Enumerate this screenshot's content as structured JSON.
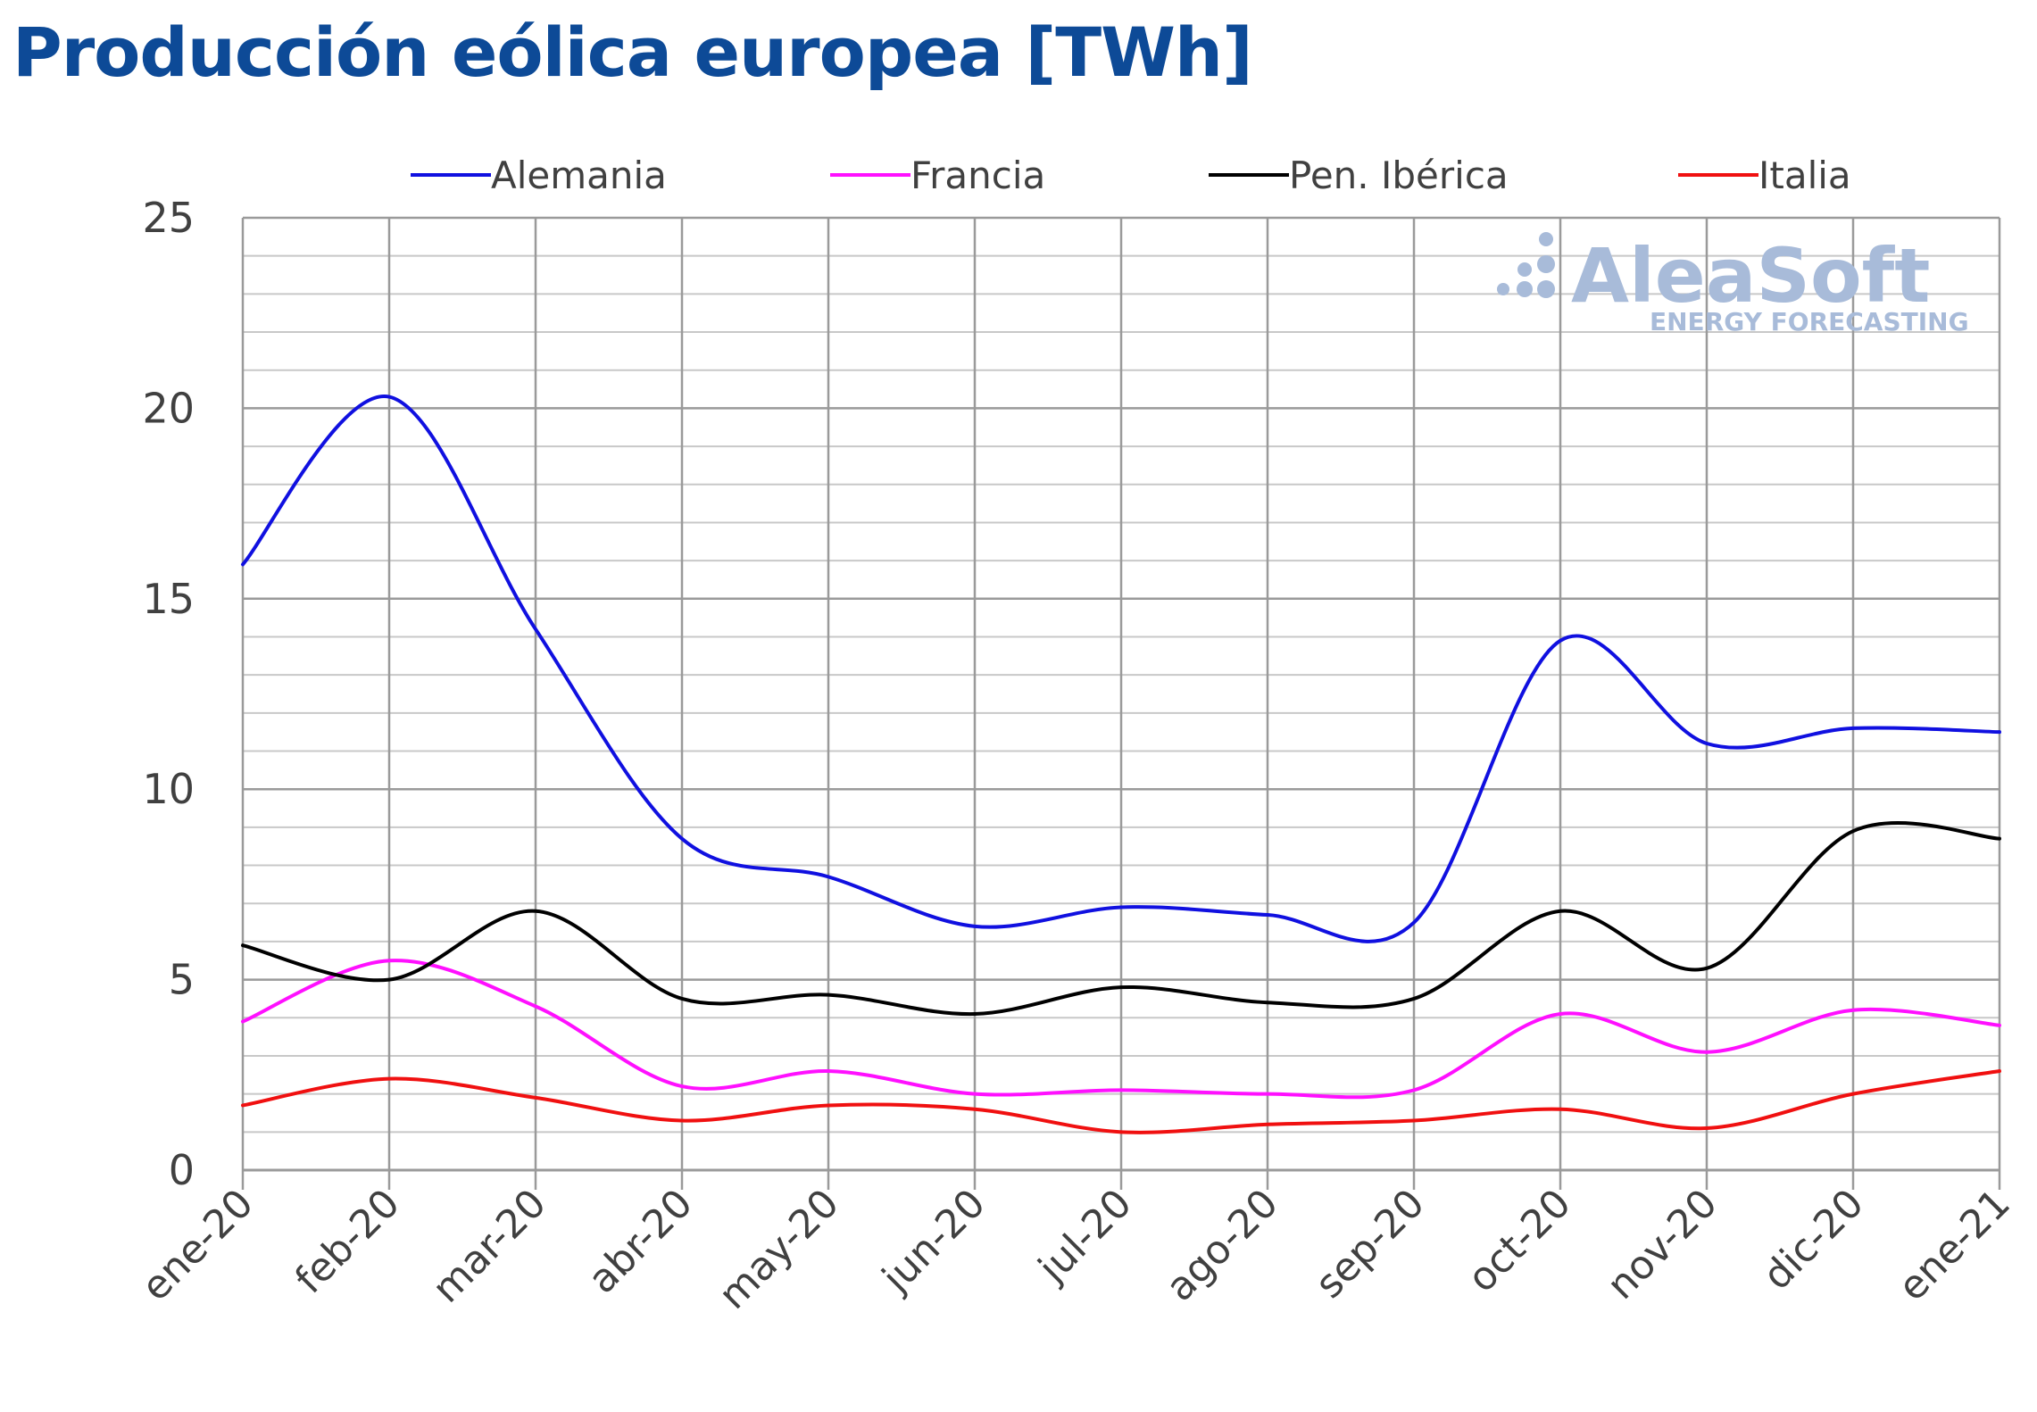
{
  "chart_data": {
    "type": "line",
    "title": "Producción eólica europea [TWh]",
    "xlabel": "",
    "ylabel": "",
    "categories": [
      "ene-20",
      "feb-20",
      "mar-20",
      "abr-20",
      "may-20",
      "jun-20",
      "jul-20",
      "ago-20",
      "sep-20",
      "oct-20",
      "nov-20",
      "dic-20",
      "ene-21"
    ],
    "ylim": [
      0,
      25
    ],
    "yticks": [
      "0",
      "5",
      "10",
      "15",
      "20",
      "25"
    ],
    "grid": true,
    "minor_grid_step": 1,
    "legend_position": "top",
    "series": [
      {
        "name": "Alemania",
        "color": "#1010e0",
        "values": [
          15.9,
          20.3,
          14.2,
          8.7,
          7.7,
          6.4,
          6.9,
          6.7,
          6.5,
          13.9,
          11.2,
          11.6,
          11.5
        ]
      },
      {
        "name": "Francia",
        "color": "#ff10ff",
        "values": [
          3.9,
          5.5,
          4.3,
          2.2,
          2.6,
          2.0,
          2.1,
          2.0,
          2.1,
          4.1,
          3.1,
          4.2,
          3.8
        ]
      },
      {
        "name": "Pen. Ibérica",
        "color": "#000000",
        "values": [
          5.9,
          5.0,
          6.8,
          4.5,
          4.6,
          4.1,
          4.8,
          4.4,
          4.5,
          6.8,
          5.3,
          8.9,
          8.7
        ]
      },
      {
        "name": "Italia",
        "color": "#f01010",
        "values": [
          1.7,
          2.4,
          1.9,
          1.3,
          1.7,
          1.6,
          1.0,
          1.2,
          1.3,
          1.6,
          1.1,
          2.0,
          2.6
        ]
      }
    ]
  },
  "watermark": {
    "brand": "AleaSoft",
    "tagline": "ENERGY FORECASTING",
    "color": "#a8bbd9"
  }
}
